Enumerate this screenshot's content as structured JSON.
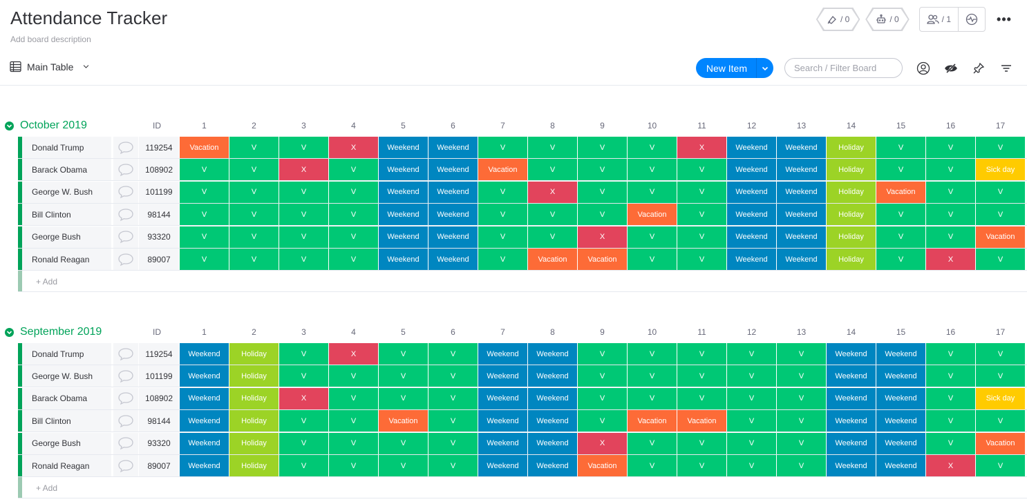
{
  "board": {
    "title": "Attendance Tracker",
    "description": "Add board description",
    "activity_count": "/ 0",
    "integrations_count": "/ 0",
    "members_count": "/ 1",
    "more_label": "•••"
  },
  "view": {
    "name": "Main Table"
  },
  "toolbar": {
    "new_item_label": "New Item",
    "search_placeholder": "Search / Filter Board"
  },
  "status_colors": {
    "V": "#00c875",
    "X": "#e2445c",
    "Weekend": "#0086c0",
    "Vacation": "#fd6b37",
    "Holiday": "#9cd326",
    "Sick day": "#ffcb00"
  },
  "groups": [
    {
      "title": "October 2019",
      "color": "#00a359",
      "id_header": "ID",
      "days": [
        "1",
        "2",
        "3",
        "4",
        "5",
        "6",
        "7",
        "8",
        "9",
        "10",
        "11",
        "12",
        "13",
        "14",
        "15",
        "16",
        "17"
      ],
      "add_label": "+ Add",
      "rows": [
        {
          "name": "Donald Trump",
          "id": "119254",
          "statuses": [
            "Vacation",
            "V",
            "V",
            "X",
            "Weekend",
            "Weekend",
            "V",
            "V",
            "V",
            "V",
            "X",
            "Weekend",
            "Weekend",
            "Holiday",
            "V",
            "V",
            "V"
          ]
        },
        {
          "name": "Barack Obama",
          "id": "108902",
          "statuses": [
            "V",
            "V",
            "X",
            "V",
            "Weekend",
            "Weekend",
            "Vacation",
            "V",
            "V",
            "V",
            "V",
            "Weekend",
            "Weekend",
            "Holiday",
            "V",
            "V",
            "Sick day"
          ]
        },
        {
          "name": "George W. Bush",
          "id": "101199",
          "statuses": [
            "V",
            "V",
            "V",
            "V",
            "Weekend",
            "Weekend",
            "V",
            "X",
            "V",
            "V",
            "V",
            "Weekend",
            "Weekend",
            "Holiday",
            "Vacation",
            "V",
            "V"
          ]
        },
        {
          "name": "Bill Clinton",
          "id": "98144",
          "statuses": [
            "V",
            "V",
            "V",
            "V",
            "Weekend",
            "Weekend",
            "V",
            "V",
            "V",
            "Vacation",
            "V",
            "Weekend",
            "Weekend",
            "Holiday",
            "V",
            "V",
            "V"
          ]
        },
        {
          "name": "George Bush",
          "id": "93320",
          "statuses": [
            "V",
            "V",
            "V",
            "V",
            "Weekend",
            "Weekend",
            "V",
            "V",
            "X",
            "V",
            "V",
            "Weekend",
            "Weekend",
            "Holiday",
            "V",
            "V",
            "Vacation"
          ]
        },
        {
          "name": "Ronald Reagan",
          "id": "89007",
          "statuses": [
            "V",
            "V",
            "V",
            "V",
            "Weekend",
            "Weekend",
            "V",
            "Vacation",
            "Vacation",
            "V",
            "V",
            "Weekend",
            "Weekend",
            "Holiday",
            "V",
            "X",
            "V"
          ]
        }
      ]
    },
    {
      "title": "September 2019",
      "color": "#00a359",
      "id_header": "ID",
      "days": [
        "1",
        "2",
        "3",
        "4",
        "5",
        "6",
        "7",
        "8",
        "9",
        "10",
        "11",
        "12",
        "13",
        "14",
        "15",
        "16",
        "17"
      ],
      "add_label": "+ Add",
      "rows": [
        {
          "name": "Donald Trump",
          "id": "119254",
          "statuses": [
            "Weekend",
            "Holiday",
            "V",
            "X",
            "V",
            "V",
            "Weekend",
            "Weekend",
            "V",
            "V",
            "V",
            "V",
            "V",
            "Weekend",
            "Weekend",
            "V",
            "V"
          ]
        },
        {
          "name": "George W. Bush",
          "id": "101199",
          "statuses": [
            "Weekend",
            "Holiday",
            "V",
            "V",
            "V",
            "V",
            "Weekend",
            "Weekend",
            "V",
            "V",
            "V",
            "V",
            "V",
            "Weekend",
            "Weekend",
            "V",
            "V"
          ]
        },
        {
          "name": "Barack Obama",
          "id": "108902",
          "statuses": [
            "Weekend",
            "Holiday",
            "X",
            "V",
            "V",
            "V",
            "Weekend",
            "Weekend",
            "V",
            "V",
            "V",
            "V",
            "V",
            "Weekend",
            "Weekend",
            "V",
            "Sick day"
          ]
        },
        {
          "name": "Bill Clinton",
          "id": "98144",
          "statuses": [
            "Weekend",
            "Holiday",
            "V",
            "V",
            "Vacation",
            "V",
            "Weekend",
            "Weekend",
            "V",
            "Vacation",
            "Vacation",
            "V",
            "V",
            "Weekend",
            "Weekend",
            "V",
            "V"
          ]
        },
        {
          "name": "George Bush",
          "id": "93320",
          "statuses": [
            "Weekend",
            "Holiday",
            "V",
            "V",
            "V",
            "V",
            "Weekend",
            "Weekend",
            "X",
            "V",
            "V",
            "V",
            "V",
            "Weekend",
            "Weekend",
            "V",
            "Vacation"
          ]
        },
        {
          "name": "Ronald Reagan",
          "id": "89007",
          "statuses": [
            "Weekend",
            "Holiday",
            "V",
            "V",
            "V",
            "V",
            "Weekend",
            "Weekend",
            "Vacation",
            "V",
            "V",
            "V",
            "V",
            "Weekend",
            "Weekend",
            "X",
            "V"
          ]
        }
      ]
    }
  ]
}
